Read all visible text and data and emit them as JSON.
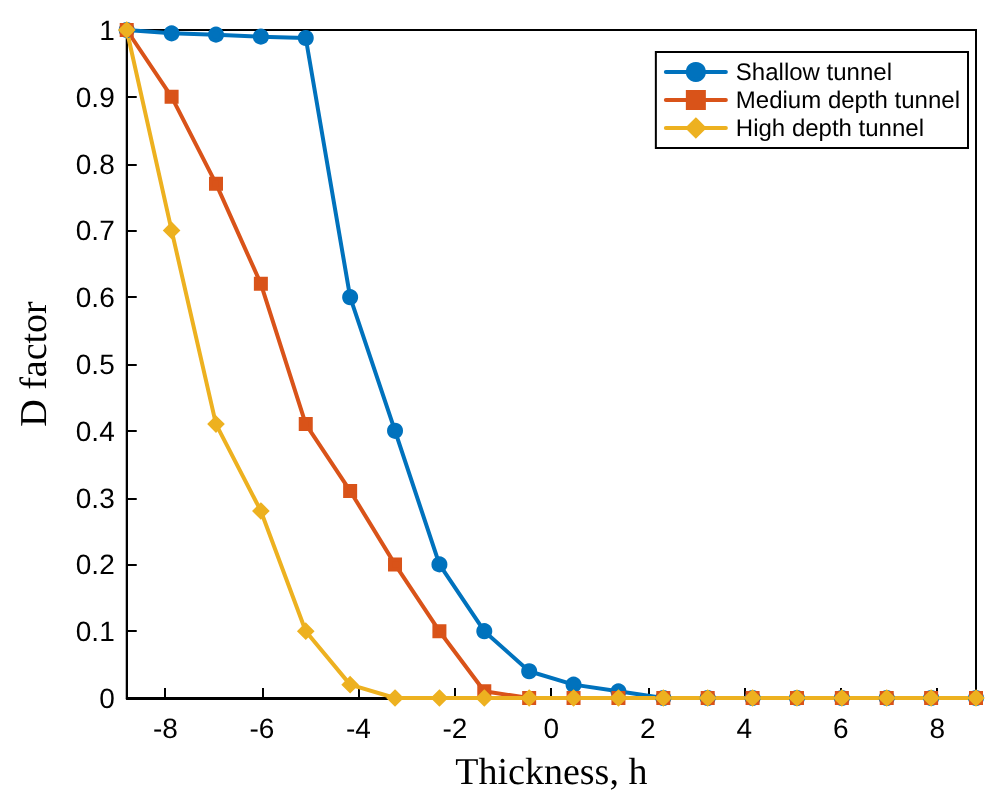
{
  "chart_data": {
    "type": "line",
    "xlabel": "Thickness, h",
    "ylabel": "D factor",
    "x": [
      -8.8,
      -7.87,
      -6.95,
      -6.02,
      -5.09,
      -4.17,
      -3.24,
      -2.32,
      -1.39,
      -0.46,
      0.46,
      1.39,
      2.32,
      3.24,
      4.17,
      5.09,
      6.02,
      6.95,
      7.87,
      8.8
    ],
    "series": [
      {
        "name": "Shallow tunnel",
        "color": "#0072bd",
        "marker": "circle",
        "values": [
          1,
          0.995,
          0.993,
          0.99,
          0.988,
          0.6,
          0.4,
          0.2,
          0.1,
          0.04,
          0.02,
          0.01,
          0,
          0,
          0,
          0,
          0,
          0,
          0,
          0
        ]
      },
      {
        "name": "Medium depth tunnel",
        "color": "#d95319",
        "marker": "square",
        "values": [
          1,
          0.9,
          0.77,
          0.62,
          0.41,
          0.31,
          0.2,
          0.1,
          0.01,
          0,
          0,
          0,
          0,
          0,
          0,
          0,
          0,
          0,
          0,
          0
        ]
      },
      {
        "name": "High depth tunnel",
        "color": "#edb120",
        "marker": "diamond",
        "values": [
          1,
          0.7,
          0.41,
          0.28,
          0.1,
          0.02,
          0,
          0,
          0,
          0,
          0,
          0,
          0,
          0,
          0,
          0,
          0,
          0,
          0,
          0
        ]
      }
    ],
    "xlim": [
      -8.8,
      8.8
    ],
    "xticks": [
      -8,
      -6,
      -4,
      -2,
      0,
      2,
      4,
      6,
      8
    ],
    "ylim": [
      0,
      1
    ],
    "yticks": [
      0,
      0.1,
      0.2,
      0.3,
      0.4,
      0.5,
      0.6,
      0.7,
      0.8,
      0.9,
      1
    ],
    "grid": false,
    "legend": "top right",
    "line_style": "solid"
  }
}
